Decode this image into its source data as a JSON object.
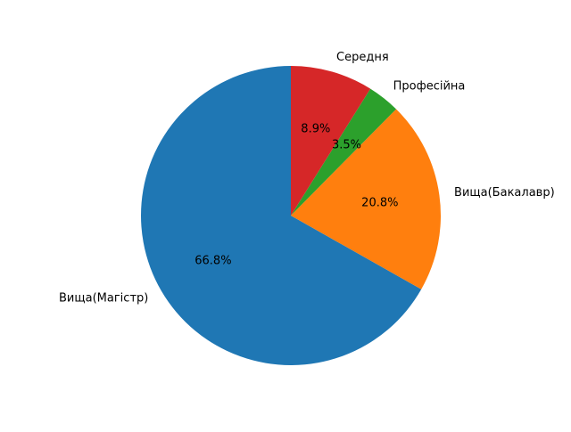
{
  "chart_data": {
    "type": "pie",
    "title": "",
    "start_angle_deg": 90,
    "direction": "counterclockwise",
    "slices": [
      {
        "label": "Вища(Магістр)",
        "value": 66.8,
        "pct_label": "66.8%",
        "color": "#1f77b4"
      },
      {
        "label": "Вища(Бакалавр)",
        "value": 20.8,
        "pct_label": "20.8%",
        "color": "#ff7f0e"
      },
      {
        "label": "Професійна",
        "value": 3.5,
        "pct_label": "3.5%",
        "color": "#2ca02c"
      },
      {
        "label": "Середня",
        "value": 8.9,
        "pct_label": "8.9%",
        "color": "#d62728"
      }
    ]
  }
}
